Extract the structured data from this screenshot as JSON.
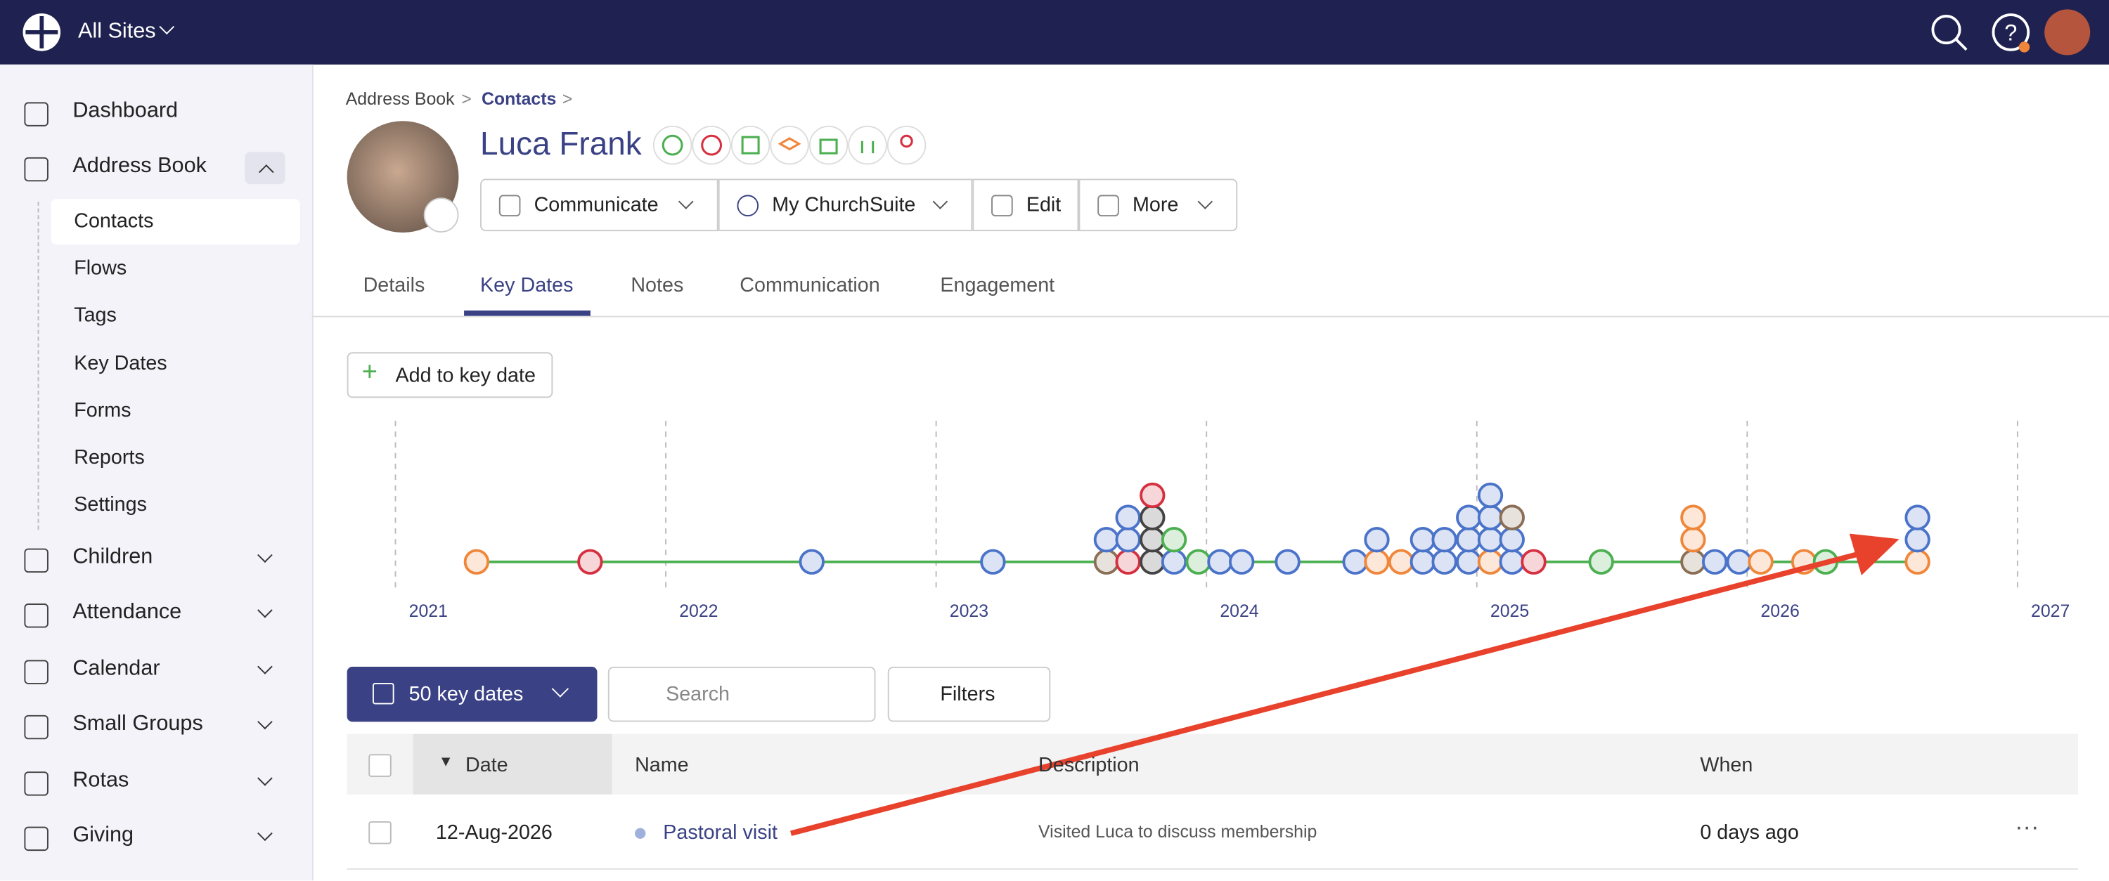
{
  "topbar": {
    "site": "All Sites"
  },
  "sidebar": {
    "items": [
      "Dashboard",
      "Address Book",
      "Children",
      "Attendance",
      "Calendar",
      "Small Groups",
      "Rotas",
      "Giving"
    ],
    "sub_items": [
      "Contacts",
      "Flows",
      "Tags",
      "Key Dates",
      "Forms",
      "Reports",
      "Settings"
    ]
  },
  "breadcrumb": [
    "Address Book",
    "Contacts"
  ],
  "contact": {
    "name": "Luca Frank"
  },
  "actions": [
    "Communicate",
    "My ChurchSuite",
    "Edit",
    "More"
  ],
  "tabs": [
    "Details",
    "Key Dates",
    "Notes",
    "Communication",
    "Engagement"
  ],
  "add_button": "Add to key date",
  "timeline": {
    "years": [
      2021,
      2022,
      2023,
      2024,
      2025,
      2026,
      2027
    ],
    "events": [
      {
        "date": 2021.3,
        "color": "#f0863a"
      },
      {
        "date": 2021.72,
        "color": "#d63040"
      },
      {
        "date": 2022.54,
        "color": "#4a73c9"
      },
      {
        "date": 2023.21,
        "color": "#4a73c9"
      },
      {
        "date": 2023.63,
        "color": "#8a6e55"
      },
      {
        "date": 2023.63,
        "color": "#4a73c9"
      },
      {
        "date": 2023.71,
        "color": "#d63040"
      },
      {
        "date": 2023.71,
        "color": "#4a73c9"
      },
      {
        "date": 2023.71,
        "color": "#4a73c9"
      },
      {
        "date": 2023.8,
        "color": "#444444"
      },
      {
        "date": 2023.8,
        "color": "#444444"
      },
      {
        "date": 2023.8,
        "color": "#444444"
      },
      {
        "date": 2023.8,
        "color": "#d63040"
      },
      {
        "date": 2023.88,
        "color": "#4a73c9"
      },
      {
        "date": 2023.88,
        "color": "#4caf50"
      },
      {
        "date": 2023.97,
        "color": "#4caf50"
      },
      {
        "date": 2024.05,
        "color": "#4a73c9"
      },
      {
        "date": 2024.13,
        "color": "#4a73c9"
      },
      {
        "date": 2024.3,
        "color": "#4a73c9"
      },
      {
        "date": 2024.55,
        "color": "#4a73c9"
      },
      {
        "date": 2024.63,
        "color": "#f0863a"
      },
      {
        "date": 2024.63,
        "color": "#4a73c9"
      },
      {
        "date": 2024.72,
        "color": "#f0863a"
      },
      {
        "date": 2024.8,
        "color": "#4a73c9"
      },
      {
        "date": 2024.8,
        "color": "#4a73c9"
      },
      {
        "date": 2024.88,
        "color": "#4a73c9"
      },
      {
        "date": 2024.88,
        "color": "#4a73c9"
      },
      {
        "date": 2024.97,
        "color": "#4a73c9"
      },
      {
        "date": 2024.97,
        "color": "#4a73c9"
      },
      {
        "date": 2024.97,
        "color": "#4a73c9"
      },
      {
        "date": 2025.05,
        "color": "#f0863a"
      },
      {
        "date": 2025.05,
        "color": "#4a73c9"
      },
      {
        "date": 2025.05,
        "color": "#4a73c9"
      },
      {
        "date": 2025.05,
        "color": "#4a73c9"
      },
      {
        "date": 2025.13,
        "color": "#4a73c9"
      },
      {
        "date": 2025.13,
        "color": "#4a73c9"
      },
      {
        "date": 2025.13,
        "color": "#8a6e55"
      },
      {
        "date": 2025.21,
        "color": "#d63040"
      },
      {
        "date": 2025.46,
        "color": "#4caf50"
      },
      {
        "date": 2025.8,
        "color": "#8a6e55"
      },
      {
        "date": 2025.8,
        "color": "#f0863a"
      },
      {
        "date": 2025.8,
        "color": "#f0863a"
      },
      {
        "date": 2025.88,
        "color": "#4a73c9"
      },
      {
        "date": 2025.97,
        "color": "#4a73c9"
      },
      {
        "date": 2026.05,
        "color": "#f0863a"
      },
      {
        "date": 2026.21,
        "color": "#f0863a"
      },
      {
        "date": 2026.29,
        "color": "#4caf50"
      },
      {
        "date": 2026.63,
        "color": "#f0863a"
      },
      {
        "date": 2026.63,
        "color": "#4a73c9"
      },
      {
        "date": 2026.63,
        "color": "#4a73c9"
      }
    ]
  },
  "toolbar": {
    "count_button": "50 key dates",
    "search_placeholder": "Search",
    "filters": "Filters"
  },
  "table": {
    "columns": [
      "Date",
      "Name",
      "Description",
      "When"
    ],
    "rows": [
      [
        "12-Aug-2026",
        "Pastoral visit",
        "Visited Luca to discuss membership",
        "0 days ago"
      ]
    ]
  }
}
